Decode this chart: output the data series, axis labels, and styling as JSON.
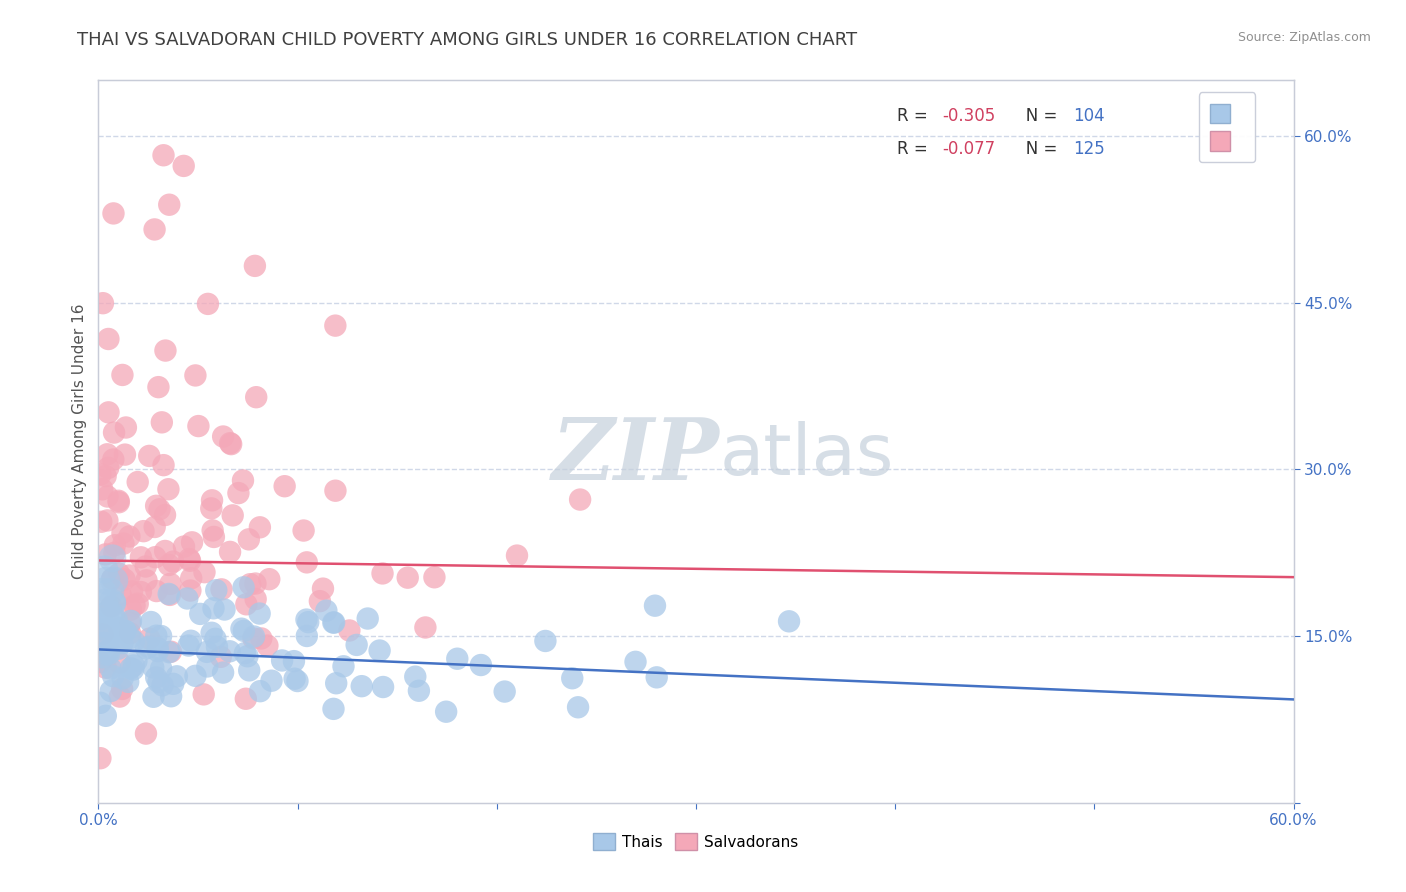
{
  "title": "THAI VS SALVADORAN CHILD POVERTY AMONG GIRLS UNDER 16 CORRELATION CHART",
  "source": "Source: ZipAtlas.com",
  "ylabel": "Child Poverty Among Girls Under 16",
  "xlim": [
    0.0,
    0.6
  ],
  "ylim": [
    0.0,
    0.65
  ],
  "right_yticks": [
    0.0,
    0.15,
    0.3,
    0.45,
    0.6
  ],
  "right_yticklabels": [
    "",
    "15.0%",
    "30.0%",
    "45.0%",
    "60.0%"
  ],
  "thai_R": -0.305,
  "thai_N": 104,
  "salv_R": -0.077,
  "salv_N": 125,
  "thai_color": "#a8c8e8",
  "salv_color": "#f4a8b8",
  "thai_line_color": "#4472c4",
  "salv_line_color": "#e05070",
  "background_color": "#ffffff",
  "grid_color": "#d0d8e8",
  "title_color": "#404040",
  "watermark_text": "ZIPat las",
  "watermark_color": "#d0dae8",
  "tick_color": "#4472c4",
  "title_fontsize": 13,
  "axis_label_fontsize": 11,
  "tick_fontsize": 11,
  "thai_trend_intercept": 0.138,
  "thai_trend_slope": -0.075,
  "salv_trend_intercept": 0.218,
  "salv_trend_slope": -0.025
}
